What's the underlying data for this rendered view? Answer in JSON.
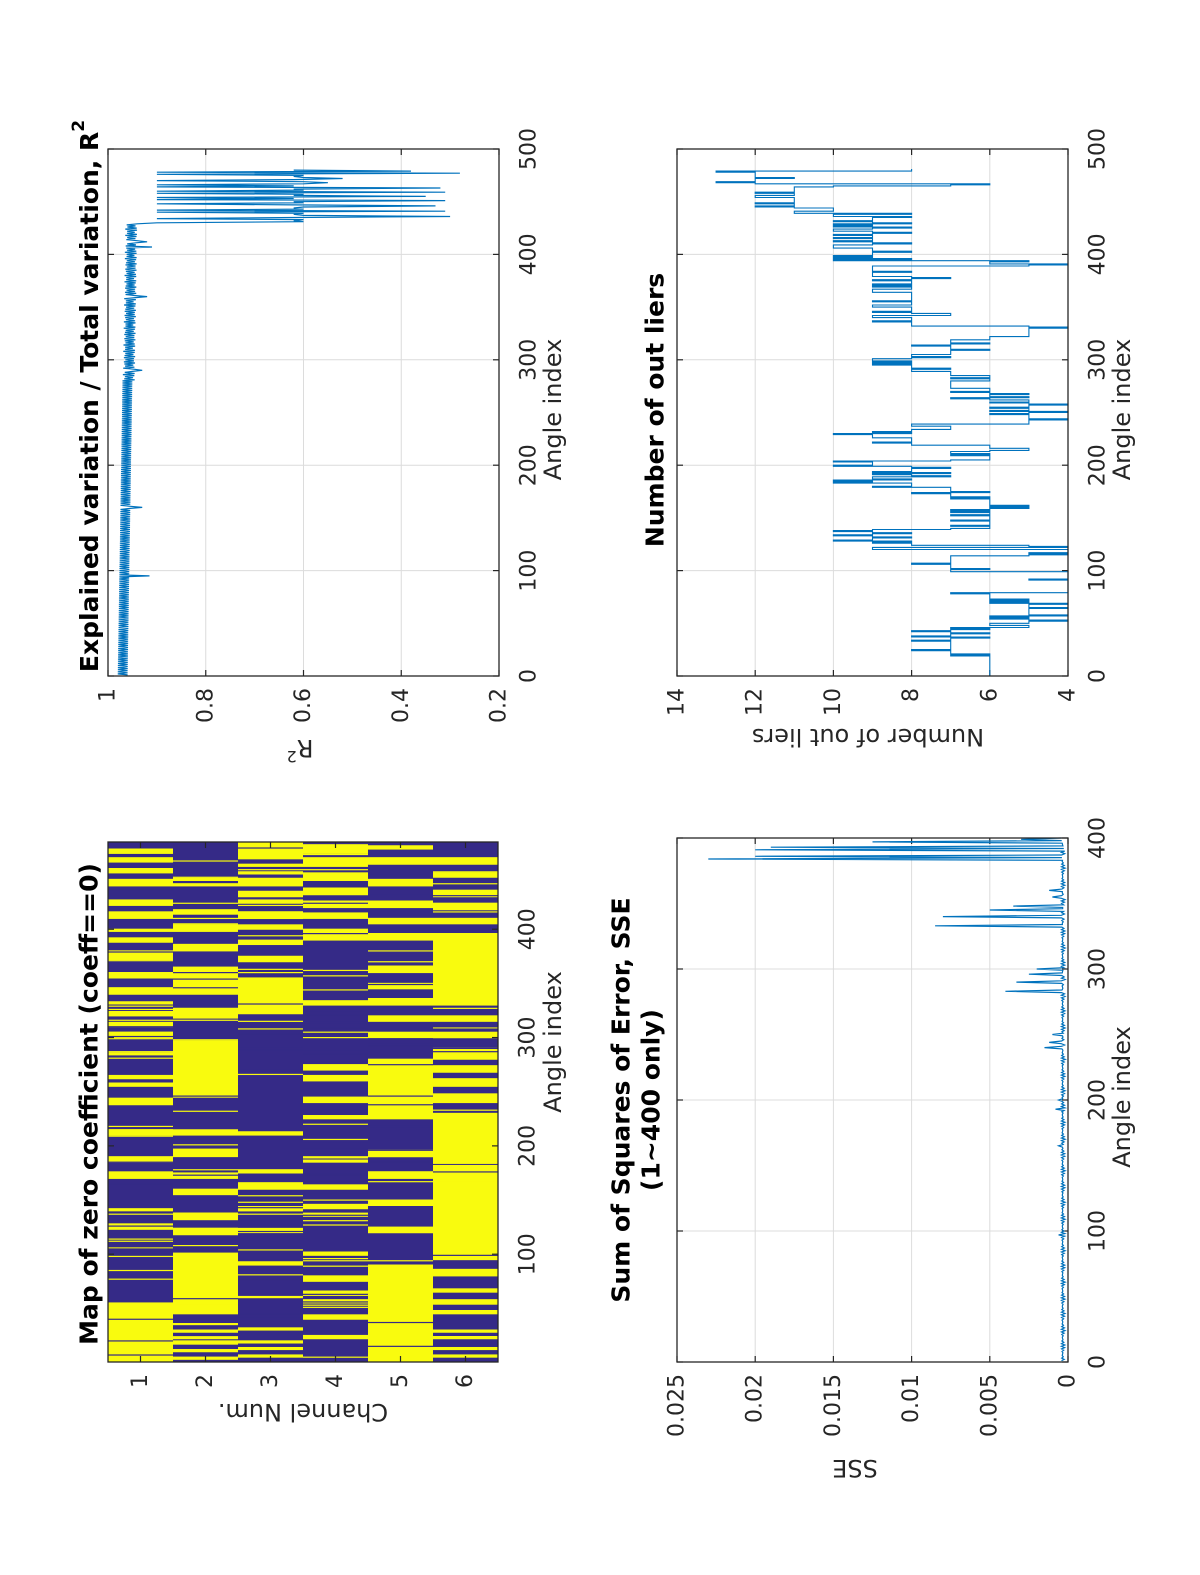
{
  "figure": {
    "orientation": "rotated 90 degrees counter-clockwise",
    "line_color": "#0072bd",
    "heatmap_colors": {
      "zero": "#f9fb0e",
      "nonzero": "#352a87"
    },
    "grid_color": "#dcdcdc",
    "axis_color": "#262626"
  },
  "chart_data": [
    {
      "id": "zero-coeff-map",
      "type": "heatmap",
      "title": "Map of zero coefficient (coeff==0)",
      "xlabel": "Angle index",
      "ylabel": "Channel Num.",
      "xlim": [
        1,
        480
      ],
      "ylim": [
        0.5,
        6.5
      ],
      "xticks": [
        100,
        200,
        300,
        400
      ],
      "yticks": [
        1,
        2,
        3,
        4,
        5,
        6
      ],
      "colormap": "binary: yellow = coefficient is zero, dark blue = non-zero",
      "segments_zero": {
        "1": [
          [
            1,
            55
          ],
          [
            123,
            128
          ],
          [
            140,
            142
          ],
          [
            170,
            176
          ],
          [
            185,
            190
          ],
          [
            210,
            215
          ],
          [
            238,
            244
          ],
          [
            255,
            258
          ],
          [
            262,
            265
          ],
          [
            284,
            286
          ],
          [
            300,
            305
          ],
          [
            310,
            314
          ],
          [
            320,
            324
          ],
          [
            331,
            333
          ],
          [
            340,
            346
          ],
          [
            355,
            360
          ],
          [
            372,
            380
          ],
          [
            388,
            392
          ],
          [
            398,
            400
          ],
          [
            410,
            416
          ],
          [
            422,
            426
          ],
          [
            440,
            446
          ],
          [
            452,
            456
          ],
          [
            462,
            466
          ],
          [
            470,
            474
          ]
        ],
        "2": [
          [
            3,
            5
          ],
          [
            10,
            12
          ],
          [
            17,
            19
          ],
          [
            22,
            24
          ],
          [
            28,
            30
          ],
          [
            35,
            36
          ],
          [
            45,
            101
          ],
          [
            118,
            124
          ],
          [
            133,
            138
          ],
          [
            155,
            160
          ],
          [
            170,
            175
          ],
          [
            190,
            197
          ],
          [
            210,
            215
          ],
          [
            245,
            297
          ],
          [
            318,
            327
          ],
          [
            340,
            365
          ],
          [
            380,
            386
          ],
          [
            398,
            404
          ],
          [
            415,
            418
          ],
          [
            440,
            442
          ],
          [
            445,
            447
          ]
        ],
        "3": [
          [
            5,
            7
          ],
          [
            12,
            14
          ],
          [
            18,
            20
          ],
          [
            30,
            32
          ],
          [
            90,
            93
          ],
          [
            120,
            124
          ],
          [
            140,
            144
          ],
          [
            160,
            166
          ],
          [
            175,
            178
          ],
          [
            210,
            213
          ],
          [
            322,
            355
          ],
          [
            370,
            375
          ],
          [
            386,
            390
          ],
          [
            400,
            404
          ],
          [
            410,
            416
          ],
          [
            424,
            427
          ],
          [
            430,
            435
          ],
          [
            440,
            447
          ],
          [
            451,
            453
          ],
          [
            458,
            460
          ],
          [
            465,
            480
          ]
        ],
        "4": [
          [
            22,
            25
          ],
          [
            40,
            44
          ],
          [
            55,
            58
          ],
          [
            62,
            66
          ],
          [
            75,
            80
          ],
          [
            99,
            102
          ],
          [
            135,
            138
          ],
          [
            142,
            146
          ],
          [
            160,
            163
          ],
          [
            185,
            190
          ],
          [
            225,
            228
          ],
          [
            240,
            245
          ],
          [
            260,
            265
          ],
          [
            270,
            275
          ],
          [
            330,
            334
          ],
          [
            390,
            400
          ],
          [
            410,
            415
          ],
          [
            420,
            426
          ],
          [
            432,
            438
          ],
          [
            445,
            452
          ],
          [
            458,
            466
          ],
          [
            470,
            478
          ]
        ],
        "5": [
          [
            1,
            90
          ],
          [
            120,
            125
          ],
          [
            145,
            150
          ],
          [
            170,
            176
          ],
          [
            190,
            196
          ],
          [
            225,
            280
          ],
          [
            300,
            306
          ],
          [
            315,
            320
          ],
          [
            330,
            336
          ],
          [
            345,
            350
          ],
          [
            360,
            366
          ],
          [
            390,
            396
          ],
          [
            405,
            410
          ],
          [
            420,
            426
          ],
          [
            440,
            446
          ],
          [
            460,
            466
          ],
          [
            474,
            477
          ]
        ],
        "6": [
          [
            5,
            7
          ],
          [
            12,
            14
          ],
          [
            22,
            24
          ],
          [
            28,
            30
          ],
          [
            45,
            48
          ],
          [
            55,
            58
          ],
          [
            65,
            68
          ],
          [
            80,
            86
          ],
          [
            95,
            230
          ],
          [
            240,
            248
          ],
          [
            255,
            262
          ],
          [
            268,
            274
          ],
          [
            280,
            290
          ],
          [
            300,
            306
          ],
          [
            315,
            320
          ],
          [
            330,
            396
          ],
          [
            405,
            410
          ],
          [
            418,
            424
          ],
          [
            430,
            436
          ],
          [
            448,
            452
          ],
          [
            460,
            466
          ]
        ]
      }
    },
    {
      "id": "sse-plot",
      "type": "line",
      "title": "Sum of Squares of Error, SSE\n(1~400 only)",
      "title_lines": [
        "Sum of Squares of Error, SSE",
        "(1~400 only)"
      ],
      "xlabel": "Angle index",
      "ylabel": "SSE",
      "xlim": [
        0,
        400
      ],
      "ylim": [
        0,
        0.025
      ],
      "xticks": [
        0,
        100,
        200,
        300,
        400
      ],
      "xtick_labels": [
        "0",
        "100",
        "200",
        "300",
        "400"
      ],
      "yticks": [
        0,
        0.005,
        0.01,
        0.015,
        0.02,
        0.025
      ],
      "ytick_labels": [
        "0",
        "0.005",
        "0.01",
        "0.015",
        "0.02",
        "0.025"
      ],
      "grid": true,
      "baseline": 0.0003,
      "spikes": [
        {
          "x": 97,
          "y": 0.0006
        },
        {
          "x": 165,
          "y": 0.0006
        },
        {
          "x": 193,
          "y": 0.0008
        },
        {
          "x": 200,
          "y": 0.0006
        },
        {
          "x": 240,
          "y": 0.0015
        },
        {
          "x": 244,
          "y": 0.0012
        },
        {
          "x": 250,
          "y": 0.001
        },
        {
          "x": 283,
          "y": 0.004
        },
        {
          "x": 290,
          "y": 0.0033
        },
        {
          "x": 296,
          "y": 0.0025
        },
        {
          "x": 300,
          "y": 0.002
        },
        {
          "x": 333,
          "y": 0.0085
        },
        {
          "x": 340,
          "y": 0.008
        },
        {
          "x": 345,
          "y": 0.005
        },
        {
          "x": 348,
          "y": 0.0035
        },
        {
          "x": 355,
          "y": 0.001
        },
        {
          "x": 360,
          "y": 0.0012
        },
        {
          "x": 384,
          "y": 0.023
        },
        {
          "x": 386,
          "y": 0.02
        },
        {
          "x": 391,
          "y": 0.02
        },
        {
          "x": 393,
          "y": 0.019
        },
        {
          "x": 397,
          "y": 0.0125
        },
        {
          "x": 399,
          "y": 0.003
        }
      ]
    },
    {
      "id": "r2-plot",
      "type": "line",
      "title": "Explained variation / Total variation, R",
      "title_superscript": "2",
      "xlabel": "Angle index",
      "ylabel": "R",
      "ylabel_superscript": "2",
      "xlim": [
        0,
        500
      ],
      "ylim": [
        0.2,
        1
      ],
      "xticks": [
        0,
        100,
        200,
        300,
        400,
        500
      ],
      "xtick_labels": [
        "0",
        "100",
        "200",
        "300",
        "400",
        "500"
      ],
      "yticks": [
        0.2,
        0.4,
        0.6,
        0.8,
        1
      ],
      "ytick_labels": [
        "0.2",
        "0.4",
        "0.6",
        "0.8",
        "1"
      ],
      "grid": true,
      "baseline_range": [
        0.96,
        0.98
      ],
      "dips": [
        {
          "x": 95,
          "y": 0.915
        },
        {
          "x": 160,
          "y": 0.93
        },
        {
          "x": 290,
          "y": 0.93
        },
        {
          "x": 360,
          "y": 0.92
        },
        {
          "x": 407,
          "y": 0.91
        },
        {
          "x": 412,
          "y": 0.92
        },
        {
          "x": 436,
          "y": 0.3
        },
        {
          "x": 441,
          "y": 0.31
        },
        {
          "x": 446,
          "y": 0.33
        },
        {
          "x": 451,
          "y": 0.31
        },
        {
          "x": 455,
          "y": 0.35
        },
        {
          "x": 459,
          "y": 0.31
        },
        {
          "x": 463,
          "y": 0.32
        },
        {
          "x": 468,
          "y": 0.55
        },
        {
          "x": 472,
          "y": 0.52
        },
        {
          "x": 477,
          "y": 0.28
        },
        {
          "x": 479,
          "y": 0.38
        }
      ]
    },
    {
      "id": "outliers-plot",
      "type": "line",
      "title": "Number of out liers",
      "xlabel": "Angle index",
      "ylabel": "Number of out liers",
      "xlim": [
        0,
        500
      ],
      "ylim": [
        4,
        14
      ],
      "xticks": [
        0,
        100,
        200,
        300,
        400,
        500
      ],
      "xtick_labels": [
        "0",
        "100",
        "200",
        "300",
        "400",
        "500"
      ],
      "yticks": [
        4,
        6,
        8,
        10,
        12,
        14
      ],
      "ytick_labels": [
        "4",
        "6",
        "8",
        "10",
        "12",
        "14"
      ],
      "grid": true,
      "steps": [
        {
          "x": [
            0,
            20
          ],
          "y": 6
        },
        {
          "x": [
            20,
            45
          ],
          "y": 7
        },
        {
          "x": [
            45,
            50
          ],
          "y": 6
        },
        {
          "x": [
            50,
            70
          ],
          "y": 5
        },
        {
          "x": [
            70,
            80
          ],
          "y": 6
        },
        {
          "x": [
            80,
            100
          ],
          "y": 4
        },
        {
          "x": [
            100,
            115
          ],
          "y": 7
        },
        {
          "x": [
            115,
            125
          ],
          "y": 5
        },
        {
          "x": [
            121,
            122
          ],
          "y": 10
        },
        {
          "x": [
            125,
            140
          ],
          "y": 9
        },
        {
          "x": [
            140,
            170
          ],
          "y": 6
        },
        {
          "x": [
            170,
            180
          ],
          "y": 7
        },
        {
          "x": [
            180,
            190
          ],
          "y": 9
        },
        {
          "x": [
            190,
            200
          ],
          "y": 8
        },
        {
          "x": [
            200,
            205
          ],
          "y": 9
        },
        {
          "x": [
            205,
            220
          ],
          "y": 6
        },
        {
          "x": [
            220,
            240
          ],
          "y": 8
        },
        {
          "x": [
            229,
            230
          ],
          "y": 9
        },
        {
          "x": [
            240,
            260
          ],
          "y": 5
        },
        {
          "x": [
            260,
            275
          ],
          "y": 6
        },
        {
          "x": [
            275,
            290
          ],
          "y": 7
        },
        {
          "x": [
            290,
            305
          ],
          "y": 8
        },
        {
          "x": [
            300,
            301
          ],
          "y": 9
        },
        {
          "x": [
            305,
            320
          ],
          "y": 7
        },
        {
          "x": [
            320,
            333
          ],
          "y": 5
        },
        {
          "x": [
            333,
            380
          ],
          "y": 8
        },
        {
          "x": [
            380,
            390
          ],
          "y": 9
        },
        {
          "x": [
            390,
            395
          ],
          "y": 5
        },
        {
          "x": [
            395,
            407
          ],
          "y": 9
        },
        {
          "x": [
            407,
            410
          ],
          "y": 10
        },
        {
          "x": [
            410,
            440
          ],
          "y": 9
        },
        {
          "x": [
            440,
            455
          ],
          "y": 11
        },
        {
          "x": [
            455,
            465
          ],
          "y": 11
        },
        {
          "x": [
            468,
            470
          ],
          "y": 13
        },
        {
          "x": [
            470,
            480
          ],
          "y": 12
        },
        {
          "x": [
            480,
            481
          ],
          "y": 8
        }
      ]
    }
  ]
}
